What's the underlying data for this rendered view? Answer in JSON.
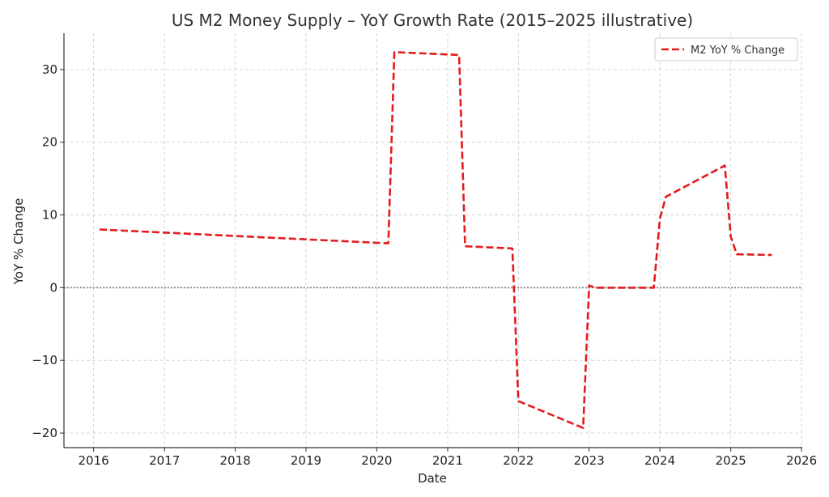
{
  "chart_data": {
    "type": "line",
    "title": "US M2 Money Supply – YoY Growth Rate (2015–2025 illustrative)",
    "xlabel": "Date",
    "ylabel": "YoY % Change",
    "xlim": [
      "2015-08-01",
      "2026-01-05"
    ],
    "ylim": [
      -22,
      35
    ],
    "x_ticks": [
      "2016",
      "2017",
      "2018",
      "2019",
      "2020",
      "2021",
      "2022",
      "2023",
      "2024",
      "2025",
      "2026"
    ],
    "y_ticks": [
      -20,
      -10,
      0,
      10,
      20,
      30
    ],
    "y_tick_labels": [
      "−20",
      "−10",
      "0",
      "10",
      "20",
      "30"
    ],
    "grid": true,
    "zero_line": true,
    "legend_position": "top-right",
    "series": [
      {
        "name": "M2 YoY % Change",
        "color": "#e41a1c",
        "line_style": "dashed",
        "points": [
          {
            "x": "2016-02-01",
            "y": 8.0
          },
          {
            "x": "2020-03-01",
            "y": 6.1
          },
          {
            "x": "2020-04-01",
            "y": 32.4
          },
          {
            "x": "2021-03-01",
            "y": 32.0
          },
          {
            "x": "2021-04-01",
            "y": 5.7
          },
          {
            "x": "2021-12-01",
            "y": 5.4
          },
          {
            "x": "2022-01-01",
            "y": -15.6
          },
          {
            "x": "2022-12-01",
            "y": -19.3
          },
          {
            "x": "2023-01-01",
            "y": 0.3
          },
          {
            "x": "2023-02-01",
            "y": 0.0
          },
          {
            "x": "2023-12-01",
            "y": 0.0
          },
          {
            "x": "2024-01-01",
            "y": 9.5
          },
          {
            "x": "2024-02-01",
            "y": 12.5
          },
          {
            "x": "2024-12-01",
            "y": 16.8
          },
          {
            "x": "2025-01-01",
            "y": 7.0
          },
          {
            "x": "2025-02-01",
            "y": 4.6
          },
          {
            "x": "2025-08-01",
            "y": 4.5
          }
        ]
      }
    ]
  }
}
